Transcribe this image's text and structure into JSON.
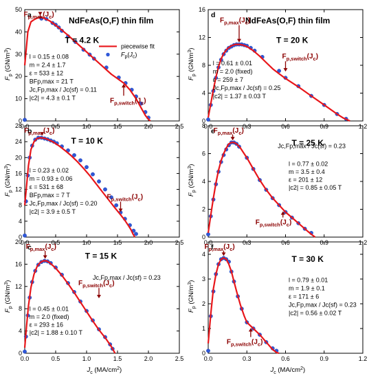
{
  "figure_title": "NdFeAs(O,F) thin film",
  "colors": {
    "fit": "#e8161a",
    "points": "#2f58d8",
    "annotation": "#8b0000"
  },
  "legend": {
    "fit": "piecewise fit",
    "points": "Fp(Jc)"
  },
  "chart_data": [
    {
      "type": "scatter",
      "panel": "a",
      "temperature": "T = 4.2 K",
      "xlim": [
        0,
        2.5
      ],
      "ylim": [
        0,
        50
      ],
      "xticks": [
        0.0,
        0.5,
        1.0,
        1.5,
        2.0,
        2.5
      ],
      "yticks": [
        0,
        10,
        20,
        30,
        40,
        50
      ],
      "ylabel": "Fp (GN/m3)",
      "xlabel": "",
      "params": [
        "l = 0.15 ± 0.08",
        "m = 2.4 ± 1.7",
        "ε = 533 ± 12",
        "BFp,max = 21 T",
        "Jc,Fp,max / Jc(sf) = 0.11",
        "|c2| = 4.3 ± 0.1 T"
      ],
      "fit_x": [
        0.0,
        0.01,
        0.05,
        0.1,
        0.15,
        0.2,
        0.25,
        0.3,
        0.4,
        0.5,
        0.6,
        0.7,
        0.8,
        0.9,
        1.0,
        1.1,
        1.2,
        1.3,
        1.4,
        1.5,
        1.6,
        1.7,
        1.8,
        1.85,
        1.9,
        1.95,
        2.0,
        2.03
      ],
      "fit_y": [
        25.0,
        28.0,
        40.0,
        44.5,
        45.5,
        46.2,
        46.5,
        46.3,
        45.0,
        43.0,
        40.8,
        38.5,
        36.0,
        33.5,
        31.0,
        28.5,
        26.0,
        23.5,
        21.0,
        19.0,
        17.0,
        14.0,
        10.0,
        7.5,
        5.0,
        2.5,
        0.8,
        0.0
      ],
      "points": [
        [
          0.27,
          46.0
        ],
        [
          0.35,
          45.8
        ],
        [
          0.45,
          44.0
        ],
        [
          0.5,
          43.2
        ],
        [
          0.55,
          42.0
        ],
        [
          0.6,
          40.5
        ],
        [
          0.7,
          38.0
        ],
        [
          0.82,
          35.5
        ],
        [
          0.95,
          32.0
        ],
        [
          1.05,
          29.8
        ],
        [
          1.12,
          28.0
        ],
        [
          1.32,
          24.0
        ],
        [
          1.52,
          19.5
        ],
        [
          1.63,
          17.0
        ],
        [
          1.73,
          14.0
        ],
        [
          1.8,
          11.0
        ],
        [
          1.88,
          7.8
        ],
        [
          1.95,
          4.0
        ],
        [
          2.0,
          1.5
        ],
        [
          0.0,
          0.5
        ]
      ],
      "ann_max": "Fp,max(Jc)",
      "ann_switch": "Fp,switch(Jc)",
      "max_at": [
        0.25,
        46.5
      ],
      "switch_at": [
        1.6,
        17.5
      ],
      "legend_shown": true
    },
    {
      "type": "scatter",
      "panel": "b",
      "temperature": "T = 10 K",
      "xlim": [
        0,
        2.5
      ],
      "ylim": [
        0,
        28
      ],
      "xticks": [
        0.0,
        0.5,
        1.0,
        1.5,
        2.0,
        2.5
      ],
      "yticks": [
        0,
        4,
        8,
        12,
        16,
        20,
        24,
        28
      ],
      "ylabel": "Fp (GN/m3)",
      "xlabel": "",
      "params": [
        "l = 0.23 ± 0.02",
        "m = 0.93 ± 0.06",
        "ε = 531 ± 68",
        "BFp,max = 7 T",
        "Jc,Fp,max / Jc(sf) = 0.20",
        "|c2| = 3.9 ± 0.5 T"
      ],
      "fit_x": [
        0.0,
        0.03,
        0.06,
        0.1,
        0.15,
        0.2,
        0.25,
        0.3,
        0.35,
        0.45,
        0.55,
        0.65,
        0.75,
        0.85,
        0.95,
        1.05,
        1.15,
        1.25,
        1.35,
        1.45,
        1.55,
        1.62,
        1.68,
        1.72,
        1.75,
        1.78
      ],
      "fit_y": [
        8.0,
        13.0,
        18.0,
        22.0,
        24.0,
        24.8,
        25.0,
        24.9,
        24.7,
        24.0,
        23.0,
        21.8,
        20.5,
        19.0,
        17.3,
        15.5,
        13.5,
        11.5,
        9.5,
        7.5,
        5.6,
        4.2,
        2.8,
        1.8,
        0.8,
        0.0
      ],
      "points": [
        [
          0.02,
          9.0
        ],
        [
          0.05,
          15.5
        ],
        [
          0.08,
          20.0
        ],
        [
          0.12,
          23.0
        ],
        [
          0.17,
          24.5
        ],
        [
          0.22,
          25.0
        ],
        [
          0.27,
          25.0
        ],
        [
          0.32,
          24.8
        ],
        [
          0.37,
          24.6
        ],
        [
          0.42,
          24.3
        ],
        [
          0.47,
          24.0
        ],
        [
          0.52,
          23.6
        ],
        [
          0.6,
          22.8
        ],
        [
          0.7,
          21.8
        ],
        [
          0.8,
          20.6
        ],
        [
          0.9,
          19.3
        ],
        [
          1.0,
          17.6
        ],
        [
          1.1,
          15.8
        ],
        [
          1.2,
          14.0
        ],
        [
          1.3,
          12.0
        ],
        [
          1.4,
          10.0
        ],
        [
          1.48,
          8.0
        ],
        [
          1.55,
          6.2
        ],
        [
          1.62,
          4.6
        ],
        [
          1.7,
          3.0
        ],
        [
          1.76,
          1.6
        ],
        [
          1.8,
          0.8
        ],
        [
          0.0,
          0.4
        ]
      ],
      "ann_max": "Fp,max(Jc)",
      "ann_switch": "Fp,switch(Jc)",
      "max_at": [
        0.28,
        25.0
      ],
      "switch_at": [
        1.55,
        5.8
      ],
      "legend_shown": false
    },
    {
      "type": "scatter",
      "panel": "c",
      "temperature": "T = 15 K",
      "xlim": [
        0,
        2.5
      ],
      "ylim": [
        0,
        20
      ],
      "xticks": [
        0.0,
        0.5,
        1.0,
        1.5,
        2.0,
        2.5
      ],
      "yticks": [
        0,
        4,
        8,
        12,
        16,
        20
      ],
      "ylabel": "Fp (GN/m3)",
      "xlabel": "Jc (MA/cm2)",
      "params": [
        "l = 0.45 ± 0.01",
        "m = 2.0 (fixed)",
        "ε = 293 ± 16",
        "|c2| = 1.88 ± 0.10 T"
      ],
      "extra_param": "Jc,Fp,max / Jc(sf) = 0.23",
      "fit_x": [
        0.0,
        0.03,
        0.06,
        0.1,
        0.15,
        0.2,
        0.25,
        0.3,
        0.35,
        0.4,
        0.5,
        0.6,
        0.7,
        0.8,
        0.9,
        1.0,
        1.1,
        1.2,
        1.3,
        1.35,
        1.4,
        1.43,
        1.46
      ],
      "fit_y": [
        1.0,
        5.0,
        8.5,
        11.8,
        14.2,
        15.6,
        16.3,
        16.6,
        16.6,
        16.3,
        15.3,
        14.0,
        12.5,
        10.9,
        9.2,
        7.5,
        5.8,
        4.2,
        2.8,
        2.0,
        1.2,
        0.6,
        0.0
      ],
      "points": [
        [
          0.0,
          0.3
        ],
        [
          0.02,
          3.0
        ],
        [
          0.05,
          6.8
        ],
        [
          0.08,
          10.0
        ],
        [
          0.12,
          12.8
        ],
        [
          0.17,
          14.8
        ],
        [
          0.22,
          15.9
        ],
        [
          0.27,
          16.4
        ],
        [
          0.32,
          16.6
        ],
        [
          0.37,
          16.5
        ],
        [
          0.42,
          16.2
        ],
        [
          0.5,
          15.4
        ],
        [
          0.6,
          14.1
        ],
        [
          0.7,
          12.6
        ],
        [
          0.8,
          11.0
        ],
        [
          0.9,
          9.3
        ],
        [
          1.0,
          7.6
        ],
        [
          1.1,
          5.9
        ],
        [
          1.2,
          4.3
        ],
        [
          1.3,
          2.9
        ],
        [
          1.38,
          1.6
        ],
        [
          1.42,
          0.8
        ]
      ],
      "ann_max": "Fp,max(Jc)",
      "ann_switch": "Fp,switch(Jc)",
      "max_at": [
        0.33,
        16.6
      ],
      "switch_at": [
        1.2,
        9.5
      ],
      "legend_shown": false
    },
    {
      "type": "scatter",
      "panel": "d",
      "temperature": "T = 20 K",
      "xlim": [
        0,
        1.2
      ],
      "ylim": [
        0,
        16
      ],
      "xticks": [
        0.0,
        0.3,
        0.6,
        0.9,
        1.2
      ],
      "yticks": [
        0,
        4,
        8,
        12,
        16
      ],
      "ylabel": "Fp (GN/m3)",
      "xlabel": "",
      "params": [
        "l = 0.61 ± 0.01",
        "m = 2.0 (fixed)",
        "ε = 259 ± 7",
        "Jc,Fp,max / Jc(sf) = 0.25",
        "|c2| = 1.37 ± 0.03 T"
      ],
      "fit_x": [
        0.0,
        0.02,
        0.04,
        0.06,
        0.08,
        0.1,
        0.12,
        0.15,
        0.18,
        0.21,
        0.24,
        0.27,
        0.3,
        0.35,
        0.4,
        0.45,
        0.5,
        0.55,
        0.6,
        0.7,
        0.8,
        0.9,
        1.0,
        1.05,
        1.1
      ],
      "fit_y": [
        0.5,
        2.5,
        4.5,
        6.3,
        7.8,
        8.9,
        9.7,
        10.4,
        10.8,
        11.0,
        11.0,
        10.9,
        10.7,
        10.1,
        9.3,
        8.4,
        7.5,
        6.8,
        6.1,
        4.9,
        3.6,
        2.3,
        1.0,
        0.4,
        0.0
      ],
      "points": [
        [
          0.0,
          0.2
        ],
        [
          0.02,
          2.3
        ],
        [
          0.04,
          4.3
        ],
        [
          0.06,
          6.2
        ],
        [
          0.08,
          7.7
        ],
        [
          0.1,
          8.8
        ],
        [
          0.12,
          9.6
        ],
        [
          0.14,
          10.1
        ],
        [
          0.16,
          10.5
        ],
        [
          0.18,
          10.7
        ],
        [
          0.2,
          10.9
        ],
        [
          0.22,
          11.0
        ],
        [
          0.24,
          11.0
        ],
        [
          0.26,
          11.0
        ],
        [
          0.28,
          10.9
        ],
        [
          0.3,
          10.8
        ],
        [
          0.33,
          10.5
        ],
        [
          0.36,
          10.1
        ],
        [
          0.42,
          9.2
        ],
        [
          0.55,
          7.2
        ],
        [
          0.6,
          6.2
        ],
        [
          0.7,
          5.0
        ],
        [
          0.8,
          3.6
        ],
        [
          0.9,
          2.3
        ],
        [
          1.0,
          1.0
        ],
        [
          1.07,
          0.3
        ]
      ],
      "ann_max": "Fp,max(Jc)",
      "ann_switch": "Fp,switch(Jc)",
      "max_at": [
        0.24,
        11.0
      ],
      "switch_at": [
        0.6,
        6.8
      ],
      "legend_shown": false
    },
    {
      "type": "scatter",
      "panel": "e",
      "temperature": "T = 25 K",
      "xlim": [
        0,
        1.2
      ],
      "ylim": [
        0,
        8
      ],
      "xticks": [
        0.0,
        0.3,
        0.6,
        0.9,
        1.2
      ],
      "yticks": [
        0,
        2,
        4,
        6,
        8
      ],
      "ylabel": "Fp (GN/m3)",
      "xlabel": "",
      "params": [
        "l = 0.77 ± 0.02",
        "m = 3.5 ± 0.4",
        "ε = 201 ± 12",
        "|c2| = 0.85 ± 0.05 T"
      ],
      "extra_param": "Jc,Fp,max / Jc(sf) = 0.23",
      "fit_x": [
        0.0,
        0.02,
        0.04,
        0.06,
        0.08,
        0.1,
        0.12,
        0.14,
        0.16,
        0.18,
        0.2,
        0.22,
        0.25,
        0.3,
        0.35,
        0.4,
        0.45,
        0.5,
        0.55,
        0.6,
        0.65,
        0.7,
        0.75,
        0.8,
        0.83
      ],
      "fit_y": [
        0.3,
        1.6,
        2.8,
        3.9,
        4.8,
        5.5,
        6.0,
        6.4,
        6.7,
        6.8,
        6.8,
        6.7,
        6.4,
        5.7,
        4.9,
        4.1,
        3.4,
        2.8,
        2.3,
        1.8,
        1.4,
        1.0,
        0.6,
        0.2,
        0.0
      ],
      "points": [
        [
          0.0,
          0.2
        ],
        [
          0.02,
          1.5
        ],
        [
          0.04,
          2.7
        ],
        [
          0.06,
          3.8
        ],
        [
          0.08,
          4.7
        ],
        [
          0.1,
          5.4
        ],
        [
          0.12,
          5.9
        ],
        [
          0.14,
          6.3
        ],
        [
          0.16,
          6.6
        ],
        [
          0.18,
          6.8
        ],
        [
          0.2,
          6.8
        ],
        [
          0.22,
          6.7
        ],
        [
          0.24,
          6.5
        ],
        [
          0.3,
          5.7
        ],
        [
          0.35,
          4.9
        ],
        [
          0.4,
          4.1
        ],
        [
          0.45,
          3.4
        ],
        [
          0.5,
          2.8
        ],
        [
          0.55,
          2.3
        ],
        [
          0.6,
          1.8
        ],
        [
          0.65,
          1.4
        ],
        [
          0.7,
          1.0
        ],
        [
          0.75,
          0.6
        ],
        [
          0.8,
          0.3
        ]
      ],
      "ann_max": "Fp,max(Jc)",
      "ann_switch": "Fp,switch(Jc)",
      "max_at": [
        0.19,
        6.8
      ],
      "switch_at": [
        0.58,
        2.0
      ],
      "legend_shown": false
    },
    {
      "type": "scatter",
      "panel": "f",
      "temperature": "T = 30 K",
      "xlim": [
        0,
        1.2
      ],
      "ylim": [
        0,
        4.5
      ],
      "xticks": [
        0.0,
        0.3,
        0.6,
        0.9,
        1.2
      ],
      "yticks": [
        0,
        1,
        2,
        3,
        4
      ],
      "ylabel": "Fp (GN/m3)",
      "xlabel": "Jc (MA/cm2)",
      "params": [
        "l = 0.79 ± 0.01",
        "m = 1.9 ± 0.1",
        "ε = 171 ± 6",
        "Jc,Fp,max / Jc(sf) = 0.23",
        "|c2| = 0.56 ± 0.02 T"
      ],
      "fit_x": [
        0.0,
        0.02,
        0.04,
        0.06,
        0.08,
        0.1,
        0.12,
        0.14,
        0.16,
        0.18,
        0.2,
        0.22,
        0.25,
        0.28,
        0.3,
        0.33,
        0.36,
        0.4,
        0.45,
        0.5,
        0.53,
        0.55
      ],
      "fit_y": [
        0.4,
        1.6,
        2.6,
        3.2,
        3.6,
        3.8,
        3.85,
        3.8,
        3.6,
        3.3,
        2.9,
        2.5,
        1.95,
        1.5,
        1.25,
        1.1,
        0.95,
        0.75,
        0.45,
        0.15,
        0.03,
        0.0
      ],
      "points": [
        [
          0.0,
          0.1
        ],
        [
          0.02,
          1.5
        ],
        [
          0.04,
          2.5
        ],
        [
          0.06,
          3.2
        ],
        [
          0.08,
          3.6
        ],
        [
          0.1,
          3.8
        ],
        [
          0.12,
          3.85
        ],
        [
          0.14,
          3.8
        ],
        [
          0.16,
          3.7
        ],
        [
          0.18,
          3.3
        ],
        [
          0.2,
          2.9
        ],
        [
          0.23,
          2.3
        ],
        [
          0.26,
          1.8
        ],
        [
          0.3,
          1.25
        ],
        [
          0.35,
          1.0
        ],
        [
          0.4,
          0.75
        ],
        [
          0.45,
          0.45
        ],
        [
          0.5,
          0.2
        ],
        [
          0.53,
          0.1
        ]
      ],
      "ann_max": "Fp,max(Jc)",
      "ann_switch": "Fp,switch(Jc)",
      "max_at": [
        0.12,
        3.85
      ],
      "switch_at": [
        0.33,
        1.1
      ],
      "legend_shown": false
    }
  ]
}
